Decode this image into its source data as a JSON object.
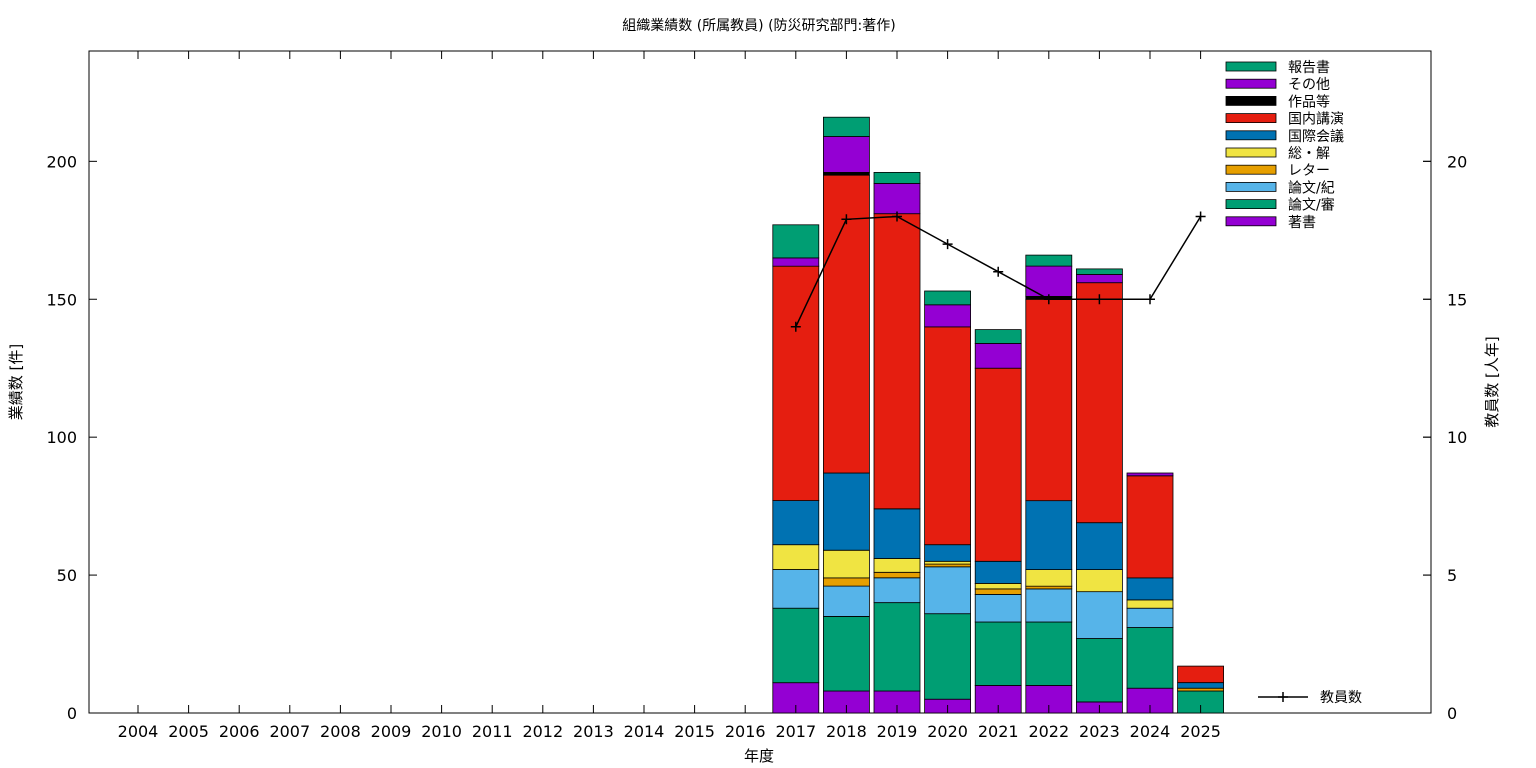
{
  "chart_data": {
    "type": "bar",
    "title": "組織業績数 (所属教員) (防災研究部門:著作)",
    "xlabel": "年度",
    "ylabel": "業績数 [件]",
    "y2label": "教員数 [人年]",
    "categories": [
      "2004",
      "2005",
      "2006",
      "2007",
      "2008",
      "2009",
      "2010",
      "2011",
      "2012",
      "2013",
      "2014",
      "2015",
      "2016",
      "2017",
      "2018",
      "2019",
      "2020",
      "2021",
      "2022",
      "2023",
      "2024",
      "2025"
    ],
    "ylim": [
      0,
      240
    ],
    "yticks": [
      0,
      50,
      100,
      150,
      200
    ],
    "y2lim": [
      0,
      24
    ],
    "y2ticks": [
      0,
      5,
      10,
      15,
      20
    ],
    "stacked": true,
    "grid": false,
    "legend_position": "top-right",
    "series": [
      {
        "name": "著書",
        "color": "#9400d3",
        "values": [
          0,
          0,
          0,
          0,
          0,
          0,
          0,
          0,
          0,
          0,
          0,
          0,
          0,
          11,
          8,
          8,
          5,
          10,
          10,
          4,
          9,
          0
        ]
      },
      {
        "name": "論文/審",
        "color": "#009e73",
        "values": [
          0,
          0,
          0,
          0,
          0,
          0,
          0,
          0,
          0,
          0,
          0,
          0,
          0,
          27,
          27,
          32,
          31,
          23,
          23,
          23,
          22,
          8
        ]
      },
      {
        "name": "論文/紀",
        "color": "#56b4e9",
        "values": [
          0,
          0,
          0,
          0,
          0,
          0,
          0,
          0,
          0,
          0,
          0,
          0,
          0,
          14,
          11,
          9,
          17,
          10,
          12,
          17,
          7,
          0
        ]
      },
      {
        "name": "レター",
        "color": "#e69f00",
        "values": [
          0,
          0,
          0,
          0,
          0,
          0,
          0,
          0,
          0,
          0,
          0,
          0,
          0,
          0,
          3,
          2,
          1,
          2,
          1,
          0,
          0,
          1
        ]
      },
      {
        "name": "総・解",
        "color": "#f0e442",
        "values": [
          0,
          0,
          0,
          0,
          0,
          0,
          0,
          0,
          0,
          0,
          0,
          0,
          0,
          9,
          10,
          5,
          1,
          2,
          6,
          8,
          3,
          0
        ]
      },
      {
        "name": "国際会議",
        "color": "#0072b2",
        "values": [
          0,
          0,
          0,
          0,
          0,
          0,
          0,
          0,
          0,
          0,
          0,
          0,
          0,
          16,
          28,
          18,
          6,
          8,
          25,
          17,
          8,
          2
        ]
      },
      {
        "name": "国内講演",
        "color": "#e51e10",
        "values": [
          0,
          0,
          0,
          0,
          0,
          0,
          0,
          0,
          0,
          0,
          0,
          0,
          0,
          85,
          108,
          107,
          79,
          70,
          73,
          87,
          37,
          6
        ]
      },
      {
        "name": "作品等",
        "color": "#000000",
        "values": [
          0,
          0,
          0,
          0,
          0,
          0,
          0,
          0,
          0,
          0,
          0,
          0,
          0,
          0,
          1,
          0,
          0,
          0,
          1,
          0,
          0,
          0
        ]
      },
      {
        "name": "その他",
        "color": "#9400d3",
        "values": [
          0,
          0,
          0,
          0,
          0,
          0,
          0,
          0,
          0,
          0,
          0,
          0,
          0,
          3,
          13,
          11,
          8,
          9,
          11,
          3,
          1,
          0
        ]
      },
      {
        "name": "報告書",
        "color": "#009e73",
        "values": [
          0,
          0,
          0,
          0,
          0,
          0,
          0,
          0,
          0,
          0,
          0,
          0,
          0,
          12,
          7,
          4,
          5,
          5,
          4,
          2,
          0,
          0
        ]
      }
    ],
    "line_series": {
      "name": "教員数",
      "color": "#000000",
      "axis": "y2",
      "x": [
        "2017",
        "2018",
        "2019",
        "2020",
        "2021",
        "2022",
        "2023",
        "2024",
        "2025"
      ],
      "values": [
        14,
        17.9,
        18,
        17,
        16,
        15,
        15,
        15,
        18
      ]
    }
  }
}
